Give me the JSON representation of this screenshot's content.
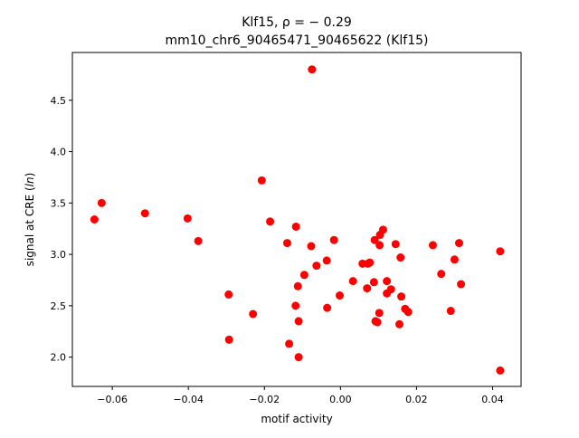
{
  "chart_data": {
    "type": "scatter",
    "title_line1": "Klf15, ρ = − 0.29",
    "title_line2": "mm10_chr6_90465471_90465622 (Klf15)",
    "xlabel": "motif activity",
    "ylabel_prefix": "signal at CRE (",
    "ylabel_italic": "ln",
    "ylabel_suffix": ")",
    "xlim": [
      -0.0705,
      0.0475
    ],
    "ylim": [
      1.715,
      4.965
    ],
    "xticks": [
      -0.06,
      -0.04,
      -0.02,
      0.0,
      0.02,
      0.04
    ],
    "xtick_labels": [
      "−0.06",
      "−0.04",
      "−0.02",
      "0.00",
      "0.02",
      "0.04"
    ],
    "yticks": [
      2.0,
      2.5,
      3.0,
      3.5,
      4.0,
      4.5
    ],
    "ytick_labels": [
      "2.0",
      "2.5",
      "3.0",
      "3.5",
      "4.0",
      "4.5"
    ],
    "grid": false,
    "marker_color": "#ff0000",
    "points": [
      {
        "x": -0.0647,
        "y": 3.34
      },
      {
        "x": -0.0628,
        "y": 3.5
      },
      {
        "x": -0.0514,
        "y": 3.4
      },
      {
        "x": -0.0402,
        "y": 3.35
      },
      {
        "x": -0.0374,
        "y": 3.13
      },
      {
        "x": -0.0294,
        "y": 2.61
      },
      {
        "x": -0.0293,
        "y": 2.17
      },
      {
        "x": -0.023,
        "y": 2.42
      },
      {
        "x": -0.0207,
        "y": 3.72
      },
      {
        "x": -0.0185,
        "y": 3.32
      },
      {
        "x": -0.014,
        "y": 3.11
      },
      {
        "x": -0.0135,
        "y": 2.13
      },
      {
        "x": -0.0117,
        "y": 3.27
      },
      {
        "x": -0.0118,
        "y": 2.5
      },
      {
        "x": -0.0112,
        "y": 2.69
      },
      {
        "x": -0.011,
        "y": 2.35
      },
      {
        "x": -0.011,
        "y": 2.0
      },
      {
        "x": -0.0095,
        "y": 2.8
      },
      {
        "x": -0.0077,
        "y": 3.08
      },
      {
        "x": -0.0075,
        "y": 4.8
      },
      {
        "x": -0.0063,
        "y": 2.89
      },
      {
        "x": -0.0036,
        "y": 2.94
      },
      {
        "x": -0.0035,
        "y": 2.48
      },
      {
        "x": -0.0017,
        "y": 3.14
      },
      {
        "x": -0.0002,
        "y": 2.6
      },
      {
        "x": 0.0033,
        "y": 2.74
      },
      {
        "x": 0.0058,
        "y": 2.91
      },
      {
        "x": 0.007,
        "y": 2.67
      },
      {
        "x": 0.0072,
        "y": 2.91
      },
      {
        "x": 0.0077,
        "y": 2.92
      },
      {
        "x": 0.0088,
        "y": 2.73
      },
      {
        "x": 0.009,
        "y": 3.14
      },
      {
        "x": 0.0092,
        "y": 2.35
      },
      {
        "x": 0.0097,
        "y": 2.34
      },
      {
        "x": 0.0103,
        "y": 3.09
      },
      {
        "x": 0.0104,
        "y": 3.19
      },
      {
        "x": 0.0102,
        "y": 2.43
      },
      {
        "x": 0.0112,
        "y": 3.24
      },
      {
        "x": 0.0122,
        "y": 2.74
      },
      {
        "x": 0.0122,
        "y": 2.62
      },
      {
        "x": 0.0133,
        "y": 2.66
      },
      {
        "x": 0.0145,
        "y": 3.1
      },
      {
        "x": 0.0155,
        "y": 2.32
      },
      {
        "x": 0.0158,
        "y": 2.97
      },
      {
        "x": 0.016,
        "y": 2.59
      },
      {
        "x": 0.017,
        "y": 2.47
      },
      {
        "x": 0.0178,
        "y": 2.44
      },
      {
        "x": 0.0243,
        "y": 3.09
      },
      {
        "x": 0.0265,
        "y": 2.81
      },
      {
        "x": 0.029,
        "y": 2.45
      },
      {
        "x": 0.03,
        "y": 2.95
      },
      {
        "x": 0.0312,
        "y": 3.11
      },
      {
        "x": 0.0317,
        "y": 2.71
      },
      {
        "x": 0.042,
        "y": 3.03
      },
      {
        "x": 0.042,
        "y": 1.87
      }
    ]
  }
}
